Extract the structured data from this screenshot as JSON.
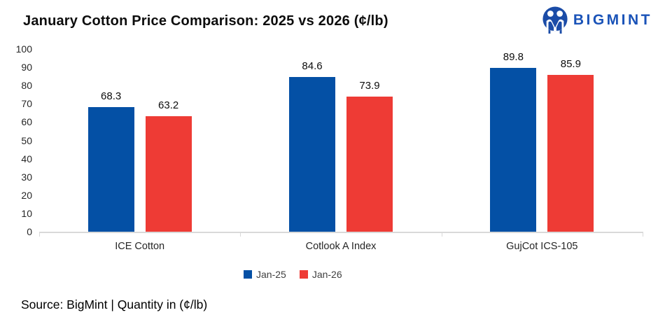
{
  "header": {
    "title": "January Cotton Price Comparison: 2025 vs 2026 (¢/lb)",
    "logo": {
      "text": "BIGMINT",
      "icon": "bigmint-m-circle",
      "text_color": "#1a53b8",
      "icon_color": "#1b4ca7"
    }
  },
  "chart_data": {
    "type": "bar",
    "title": "January Cotton Price Comparison: 2025 vs 2026 (¢/lb)",
    "categories": [
      "ICE Cotton",
      "Cotlook A Index",
      "GujCot ICS-105"
    ],
    "series": [
      {
        "name": "Jan-25",
        "color": "#0450a5",
        "values": [
          68.3,
          84.6,
          89.8
        ]
      },
      {
        "name": "Jan-26",
        "color": "#ee3b35",
        "values": [
          63.2,
          73.9,
          85.9
        ]
      }
    ],
    "ylabel": "",
    "xlabel": "",
    "ylim": [
      0,
      100
    ],
    "ytick_step": 10,
    "yticks": [
      0,
      10,
      20,
      30,
      40,
      50,
      60,
      70,
      80,
      90,
      100
    ],
    "grid": false,
    "legend_position": "bottom",
    "axis_line_color": "#d9d9d9",
    "data_labels": true
  },
  "footer": {
    "source": "Source: BigMint | Quantity in (¢/lb)"
  }
}
